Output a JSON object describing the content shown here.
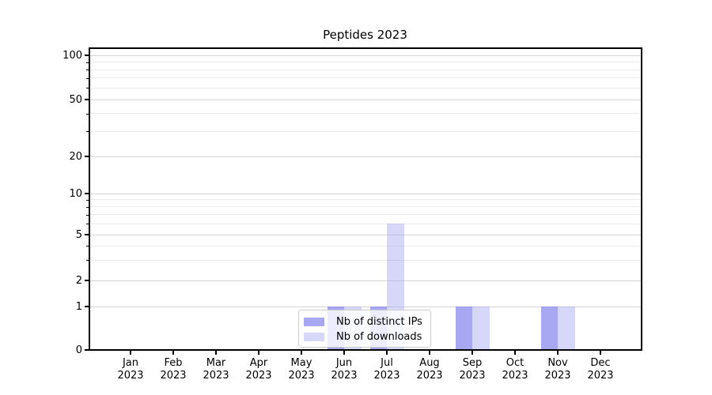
{
  "title": "Peptides 2023",
  "colors": {
    "distinct_ips": "rgba(120,120,235,0.65)",
    "downloads": "rgba(160,160,240,0.42)",
    "grid_major": "#d3d3d3",
    "grid_minor": "#ebebeb",
    "axis": "#000000",
    "legend_border": "#cccccc",
    "legend_bg": "rgba(255,255,255,0.8)"
  },
  "chart_data": {
    "type": "bar",
    "title": "Peptides 2023",
    "categories": [
      "Jan",
      "Feb",
      "Mar",
      "Apr",
      "May",
      "Jun",
      "Jul",
      "Aug",
      "Sep",
      "Oct",
      "Nov",
      "Dec"
    ],
    "x_tick_year": "2023",
    "series": [
      {
        "name": "Nb of distinct IPs",
        "color": "rgba(120,120,235,0.65)",
        "values": [
          0,
          0,
          0,
          0,
          0,
          1,
          1,
          0,
          1,
          0,
          1,
          0
        ]
      },
      {
        "name": "Nb of downloads",
        "color": "rgba(160,160,240,0.42)",
        "values": [
          0,
          0,
          0,
          0,
          0,
          1,
          6,
          0,
          1,
          0,
          1,
          0
        ]
      }
    ],
    "yscale": "symlog",
    "y_major_ticks": [
      0,
      1,
      2,
      5,
      10,
      20,
      50,
      100
    ],
    "y_minor_ticks": [
      3,
      4,
      6,
      7,
      8,
      9,
      30,
      40,
      60,
      70,
      80,
      90
    ],
    "ylim": [
      0,
      110
    ],
    "xlabel": "",
    "ylabel": "",
    "grid": true,
    "legend_position": "lower center-left inside plot"
  }
}
